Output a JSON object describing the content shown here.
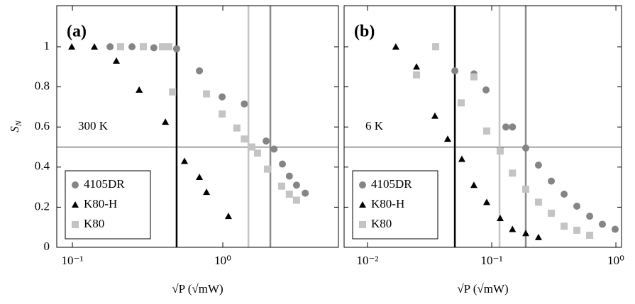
{
  "chart_data": [
    {
      "type": "scatter",
      "label": "(a)",
      "note": "300 K",
      "ylabel": "S_N",
      "xlabel": "√P (√mW)",
      "log_x": true,
      "xlim": [
        0.0787,
        5.87
      ],
      "ylim": [
        0,
        1.205
      ],
      "xticks": [
        {
          "value": 0.1,
          "label": "10⁻¹"
        },
        {
          "value": 1,
          "label": "10⁰"
        }
      ],
      "yticks": [
        0,
        0.2,
        0.4,
        0.6,
        0.8,
        1
      ],
      "show_ytick_labels": true,
      "hline": 0.5,
      "vlines": [
        0.493,
        1.48,
        2.07
      ],
      "vline_colors": [
        "#000000",
        "#c4c4c4",
        "#8a8a8a"
      ],
      "legend": "lower left",
      "series": [
        {
          "name": "4105DR",
          "marker": "circle",
          "color": "#858585",
          "x": [
            0.178,
            0.249,
            0.348,
            0.493,
            0.699,
            0.99,
            1.39,
            1.94,
            2.19,
            2.49,
            2.77,
            3.09,
            3.53
          ],
          "values": [
            1.0,
            1.0,
            0.995,
            0.99,
            0.88,
            0.75,
            0.715,
            0.53,
            0.49,
            0.415,
            0.355,
            0.31,
            0.27
          ]
        },
        {
          "name": "K80-H",
          "marker": "triangle",
          "color": "#000000",
          "x": [
            0.099,
            0.14,
            0.196,
            0.278,
            0.415,
            0.556,
            0.699,
            0.779,
            1.09
          ],
          "values": [
            1.0,
            1.0,
            0.93,
            0.785,
            0.625,
            0.43,
            0.35,
            0.275,
            0.155
          ]
        },
        {
          "name": "K80",
          "marker": "square",
          "color": "#c4c4c4",
          "x": [
            0.209,
            0.296,
            0.397,
            0.438,
            0.463,
            0.779,
            0.99,
            1.24,
            1.39,
            1.56,
            1.7,
            1.98,
            2.46,
            2.77,
            3.09
          ],
          "values": [
            1.0,
            1.0,
            1.0,
            1.0,
            0.775,
            0.765,
            0.665,
            0.595,
            0.54,
            0.5,
            0.47,
            0.39,
            0.305,
            0.265,
            0.235
          ]
        }
      ]
    },
    {
      "type": "scatter",
      "label": "(b)",
      "note": "6 K",
      "xlabel": "√P (√mW)",
      "log_x": true,
      "xlim": [
        0.00648,
        1.11
      ],
      "ylim": [
        0,
        1.205
      ],
      "xticks": [
        {
          "value": 0.01,
          "label": "10⁻²"
        },
        {
          "value": 0.1,
          "label": "10⁻¹"
        },
        {
          "value": 1,
          "label": "10⁰"
        }
      ],
      "yticks": [
        0,
        0.2,
        0.4,
        0.6,
        0.8,
        1
      ],
      "show_ytick_labels": false,
      "hline": 0.5,
      "vlines": [
        0.0505,
        0.1156,
        0.188
      ],
      "vline_colors": [
        "#000000",
        "#c4c4c4",
        "#8a8a8a"
      ],
      "legend": "lower left",
      "series": [
        {
          "name": "4105DR",
          "marker": "circle",
          "color": "#858585",
          "x": [
            0.0505,
            0.072,
            0.09,
            0.13,
            0.147,
            0.188,
            0.238,
            0.302,
            0.383,
            0.485,
            0.615,
            0.778,
            0.986
          ],
          "values": [
            0.88,
            0.865,
            0.785,
            0.6,
            0.6,
            0.495,
            0.41,
            0.33,
            0.265,
            0.205,
            0.155,
            0.115,
            0.09
          ]
        },
        {
          "name": "K80-H",
          "marker": "triangle",
          "color": "#000000",
          "x": [
            0.0169,
            0.0248,
            0.0349,
            0.0442,
            0.0575,
            0.0719,
            0.0912,
            0.117,
            0.147,
            0.188,
            0.238
          ],
          "values": [
            1.0,
            0.9,
            0.655,
            0.54,
            0.44,
            0.31,
            0.225,
            0.145,
            0.09,
            0.07,
            0.05
          ]
        },
        {
          "name": "K80",
          "marker": "square",
          "color": "#c4c4c4",
          "x": [
            0.0248,
            0.0354,
            0.0568,
            0.0719,
            0.0912,
            0.117,
            0.147,
            0.188,
            0.238,
            0.302,
            0.383,
            0.485,
            0.615
          ],
          "values": [
            0.86,
            1.0,
            0.72,
            0.85,
            0.58,
            0.48,
            0.37,
            0.29,
            0.225,
            0.17,
            0.105,
            0.085,
            0.06
          ]
        }
      ]
    }
  ]
}
